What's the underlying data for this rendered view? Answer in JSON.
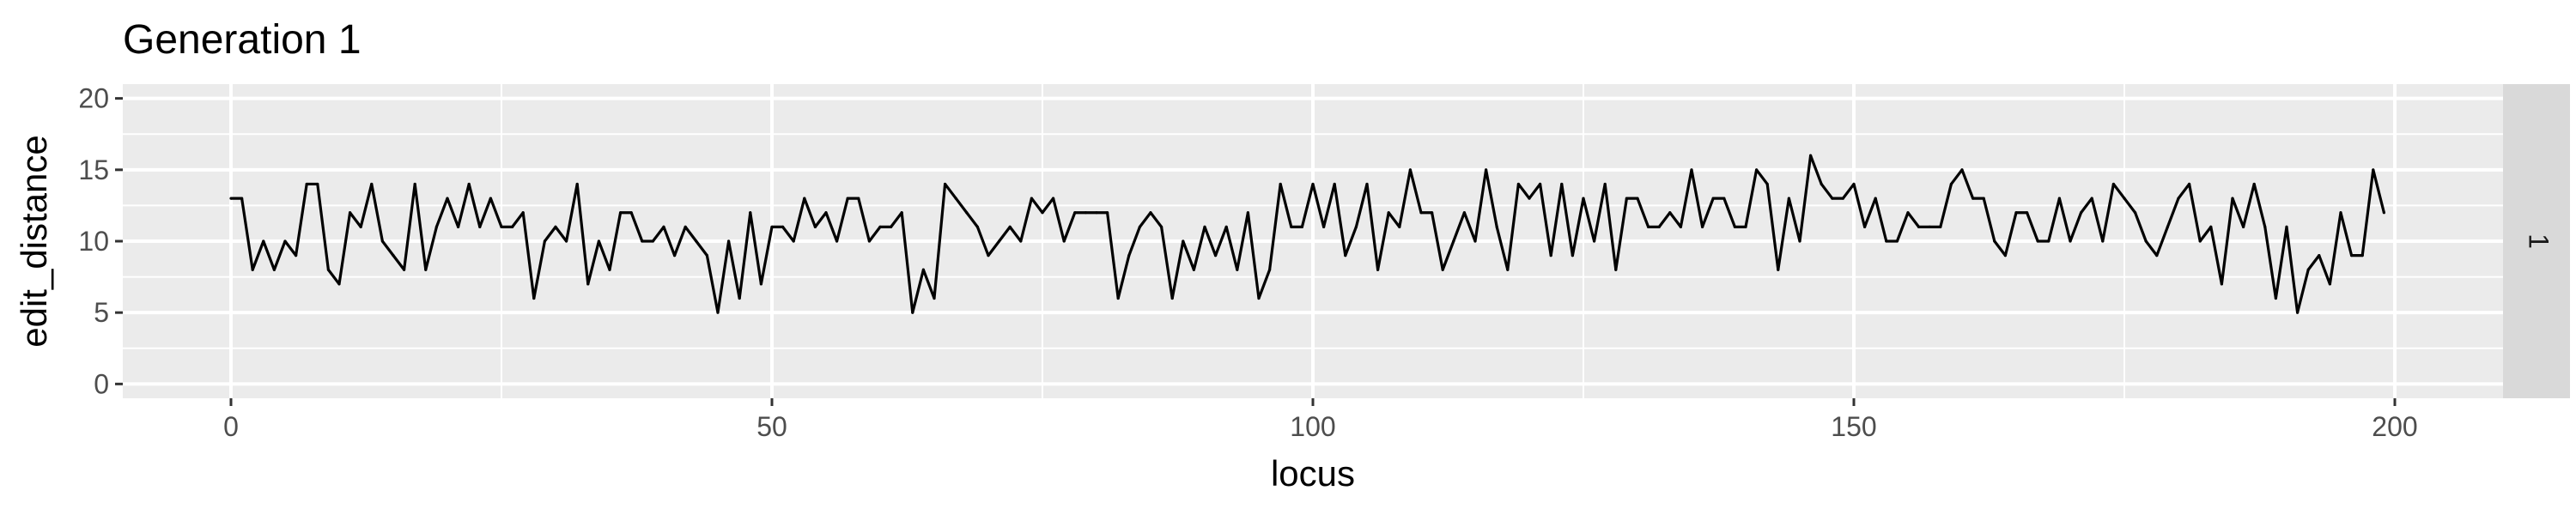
{
  "chart_data": {
    "type": "line",
    "title": "Generation 1",
    "xlabel": "locus",
    "ylabel": "edit_distance",
    "facet_label": "1",
    "xlim": [
      -10,
      210
    ],
    "ylim": [
      -1,
      21
    ],
    "x_ticks": [
      0,
      50,
      100,
      150,
      200
    ],
    "y_ticks": [
      0,
      5,
      10,
      15,
      20
    ],
    "grid": true,
    "colors": {
      "panel": "#ebebeb",
      "grid_major": "#ffffff",
      "strip": "#d9d9d9",
      "line": "#000000"
    },
    "series": [
      {
        "values": [
          13,
          13,
          8,
          10,
          8,
          10,
          9,
          14,
          14,
          8,
          7,
          12,
          11,
          14,
          10,
          9,
          8,
          14,
          8,
          11,
          13,
          11,
          14,
          11,
          13,
          11,
          11,
          12,
          6,
          10,
          11,
          10,
          14,
          7,
          10,
          8,
          12,
          12,
          10,
          10,
          11,
          9,
          11,
          10,
          9,
          5,
          10,
          6,
          12,
          7,
          11,
          11,
          10,
          13,
          11,
          12,
          10,
          13,
          13,
          10,
          11,
          11,
          12,
          5,
          8,
          6,
          14,
          13,
          12,
          11,
          9,
          10,
          11,
          10,
          13,
          12,
          13,
          10,
          12,
          12,
          12,
          12,
          6,
          9,
          11,
          12,
          11,
          6,
          10,
          8,
          11,
          9,
          11,
          8,
          12,
          6,
          8,
          14,
          11,
          11,
          14,
          11,
          14,
          9,
          11,
          14,
          8,
          12,
          11,
          15,
          12,
          12,
          8,
          10,
          12,
          10,
          15,
          11,
          8,
          14,
          13,
          14,
          9,
          14,
          9,
          13,
          10,
          14,
          8,
          13,
          13,
          11,
          11,
          12,
          11,
          15,
          11,
          13,
          13,
          11,
          11,
          15,
          14,
          8,
          13,
          10,
          16,
          14,
          13,
          13,
          14,
          11,
          13,
          10,
          10,
          12,
          11,
          11,
          11,
          14,
          15,
          13,
          13,
          10,
          9,
          12,
          12,
          10,
          10,
          13,
          10,
          12,
          13,
          10,
          14,
          13,
          12,
          10,
          9,
          11,
          13,
          14,
          10,
          11,
          7,
          13,
          11,
          14,
          11,
          6,
          11,
          5,
          8,
          9,
          7,
          12,
          9,
          9,
          15,
          12
        ]
      }
    ]
  }
}
